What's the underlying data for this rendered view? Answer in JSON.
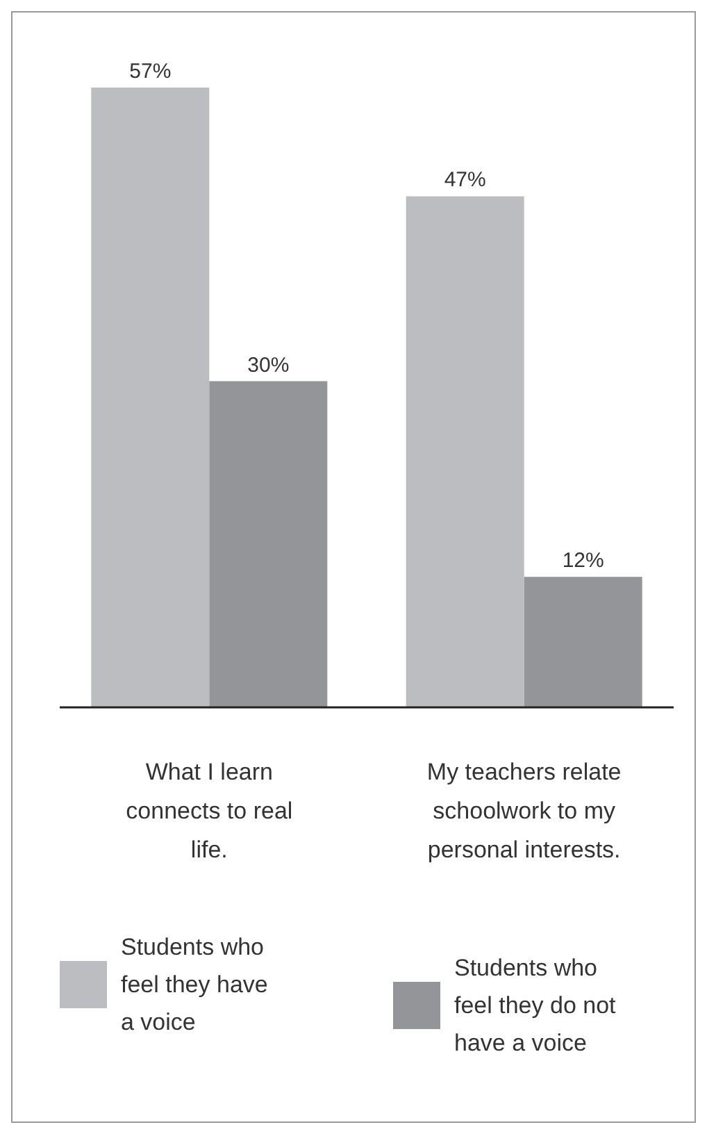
{
  "chart_data": {
    "type": "bar",
    "categories": [
      "What I learn connects to real life.",
      "My teachers relate schoolwork to my personal interests."
    ],
    "series": [
      {
        "name": "Students who feel they have a voice",
        "color": "#bcbdc0",
        "values": [
          57,
          47
        ],
        "value_labels": [
          "57%",
          "47%"
        ]
      },
      {
        "name": "Students who feel they do not have a voice",
        "color": "#939598",
        "values": [
          30,
          12
        ],
        "value_labels": [
          "30%",
          "12%"
        ]
      }
    ],
    "tick_labels": "x",
    "legend": "bottom"
  }
}
